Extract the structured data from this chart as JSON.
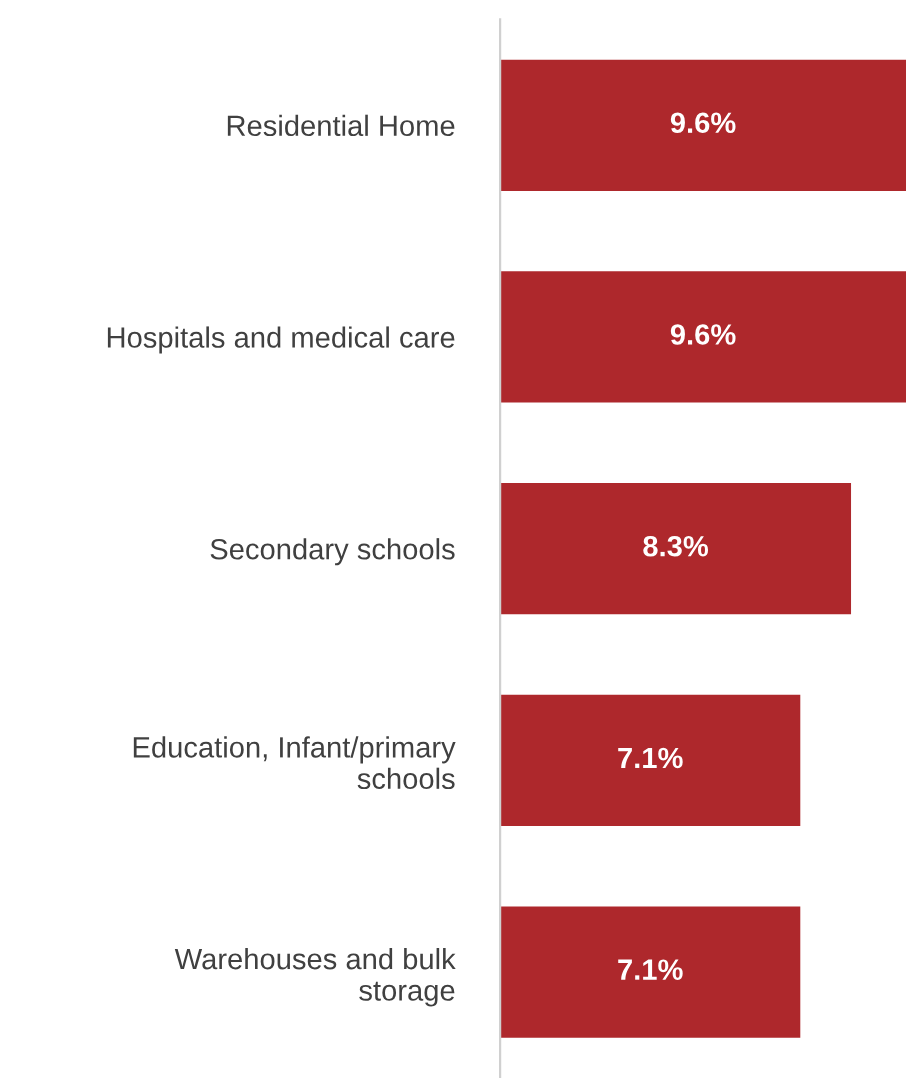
{
  "chart_data": {
    "type": "bar",
    "orientation": "horizontal",
    "categories": [
      "Residential Home",
      "Hospitals and medical care",
      "Secondary schools",
      "Education, Infant/primary schools",
      "Warehouses and bulk storage"
    ],
    "values": [
      9.6,
      9.6,
      8.3,
      7.1,
      7.1
    ],
    "value_labels": [
      "9.6%",
      "9.6%",
      "8.3%",
      "7.1%",
      "7.1%"
    ],
    "color": "#ae282c",
    "xlim": [
      0,
      9.6
    ],
    "tick_labels": "y",
    "grid": false,
    "legend": false
  }
}
